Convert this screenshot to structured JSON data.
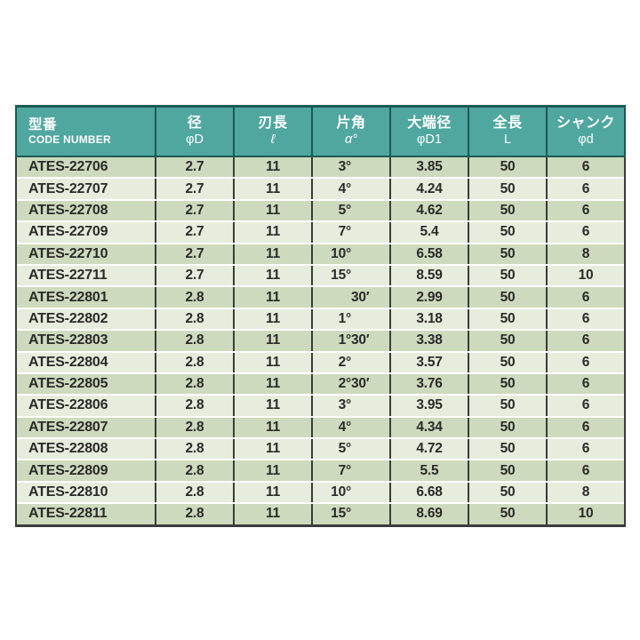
{
  "colors": {
    "page_bg": "#FFFFFF",
    "header_bg": "#4FA7A0",
    "header_border": "#1A5A53",
    "header_text": "#FFFFFF",
    "body_border": "#3B3B3B",
    "row_dark": "#CEDABD",
    "row_light": "#E7EDDC",
    "row_separator": "#FFFFFF",
    "cell_text": "#2A2A2A"
  },
  "table": {
    "columns": [
      {
        "label_ja": "型番",
        "label_sub": "CODE NUMBER"
      },
      {
        "label_ja": "径",
        "label_sub": "φD"
      },
      {
        "label_ja": "刃長",
        "label_sub": "ℓ"
      },
      {
        "label_ja": "片角",
        "label_sub": "α°"
      },
      {
        "label_ja": "大端径",
        "label_sub": "φD1"
      },
      {
        "label_ja": "全長",
        "label_sub": "L"
      },
      {
        "label_ja": "シャンク",
        "label_sub": "φd"
      }
    ],
    "rows": [
      {
        "code": "ATES-22706",
        "dia": "2.7",
        "flute_len": "11",
        "angle_deg": "3°",
        "angle_min": "",
        "d1": "3.85",
        "overall_len": "50",
        "shank": "6"
      },
      {
        "code": "ATES-22707",
        "dia": "2.7",
        "flute_len": "11",
        "angle_deg": "4°",
        "angle_min": "",
        "d1": "4.24",
        "overall_len": "50",
        "shank": "6"
      },
      {
        "code": "ATES-22708",
        "dia": "2.7",
        "flute_len": "11",
        "angle_deg": "5°",
        "angle_min": "",
        "d1": "4.62",
        "overall_len": "50",
        "shank": "6"
      },
      {
        "code": "ATES-22709",
        "dia": "2.7",
        "flute_len": "11",
        "angle_deg": "7°",
        "angle_min": "",
        "d1": "5.4",
        "overall_len": "50",
        "shank": "6"
      },
      {
        "code": "ATES-22710",
        "dia": "2.7",
        "flute_len": "11",
        "angle_deg": "10°",
        "angle_min": "",
        "d1": "6.58",
        "overall_len": "50",
        "shank": "8"
      },
      {
        "code": "ATES-22711",
        "dia": "2.7",
        "flute_len": "11",
        "angle_deg": "15°",
        "angle_min": "",
        "d1": "8.59",
        "overall_len": "50",
        "shank": "10"
      },
      {
        "code": "ATES-22801",
        "dia": "2.8",
        "flute_len": "11",
        "angle_deg": "",
        "angle_min": "30′",
        "d1": "2.99",
        "overall_len": "50",
        "shank": "6"
      },
      {
        "code": "ATES-22802",
        "dia": "2.8",
        "flute_len": "11",
        "angle_deg": "1°",
        "angle_min": "",
        "d1": "3.18",
        "overall_len": "50",
        "shank": "6"
      },
      {
        "code": "ATES-22803",
        "dia": "2.8",
        "flute_len": "11",
        "angle_deg": "1°",
        "angle_min": "30′",
        "d1": "3.38",
        "overall_len": "50",
        "shank": "6"
      },
      {
        "code": "ATES-22804",
        "dia": "2.8",
        "flute_len": "11",
        "angle_deg": "2°",
        "angle_min": "",
        "d1": "3.57",
        "overall_len": "50",
        "shank": "6"
      },
      {
        "code": "ATES-22805",
        "dia": "2.8",
        "flute_len": "11",
        "angle_deg": "2°",
        "angle_min": "30′",
        "d1": "3.76",
        "overall_len": "50",
        "shank": "6"
      },
      {
        "code": "ATES-22806",
        "dia": "2.8",
        "flute_len": "11",
        "angle_deg": "3°",
        "angle_min": "",
        "d1": "3.95",
        "overall_len": "50",
        "shank": "6"
      },
      {
        "code": "ATES-22807",
        "dia": "2.8",
        "flute_len": "11",
        "angle_deg": "4°",
        "angle_min": "",
        "d1": "4.34",
        "overall_len": "50",
        "shank": "6"
      },
      {
        "code": "ATES-22808",
        "dia": "2.8",
        "flute_len": "11",
        "angle_deg": "5°",
        "angle_min": "",
        "d1": "4.72",
        "overall_len": "50",
        "shank": "6"
      },
      {
        "code": "ATES-22809",
        "dia": "2.8",
        "flute_len": "11",
        "angle_deg": "7°",
        "angle_min": "",
        "d1": "5.5",
        "overall_len": "50",
        "shank": "6"
      },
      {
        "code": "ATES-22810",
        "dia": "2.8",
        "flute_len": "11",
        "angle_deg": "10°",
        "angle_min": "",
        "d1": "6.68",
        "overall_len": "50",
        "shank": "8"
      },
      {
        "code": "ATES-22811",
        "dia": "2.8",
        "flute_len": "11",
        "angle_deg": "15°",
        "angle_min": "",
        "d1": "8.69",
        "overall_len": "50",
        "shank": "10"
      }
    ]
  }
}
